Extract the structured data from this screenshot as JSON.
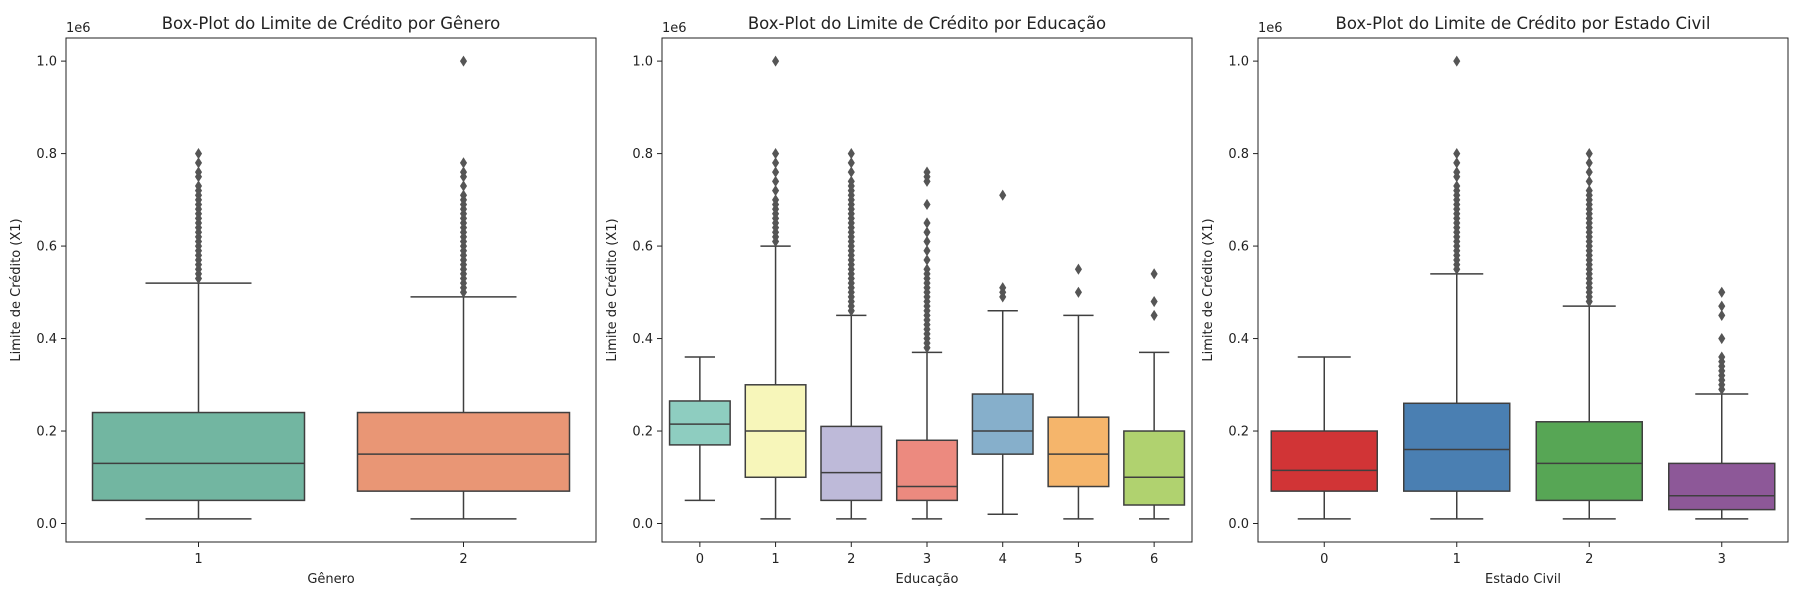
{
  "chart_data": [
    {
      "type": "box",
      "title": "Box-Plot do Limite de Crédito por Gênero",
      "xlabel": "Gênero",
      "ylabel": "Limite de Crédito (X1)",
      "offset_text": "1e6",
      "ylim": [
        -40000,
        1050000
      ],
      "yticks": [
        0.0,
        0.2,
        0.4,
        0.6,
        0.8,
        1.0
      ],
      "ytick_labels": [
        "0.0",
        "0.2",
        "0.4",
        "0.6",
        "0.8",
        "1.0"
      ],
      "ytick_scale": 1000000,
      "categories": [
        "1",
        "2"
      ],
      "boxes": [
        {
          "category": "1",
          "color": "#72b6a1",
          "min": 10000,
          "q1": 50000,
          "median": 130000,
          "q3": 240000,
          "max": 520000,
          "outliers": [
            530000,
            540000,
            550000,
            560000,
            570000,
            580000,
            590000,
            600000,
            610000,
            620000,
            630000,
            640000,
            650000,
            660000,
            670000,
            680000,
            690000,
            700000,
            710000,
            720000,
            730000,
            750000,
            760000,
            780000,
            800000
          ]
        },
        {
          "category": "2",
          "color": "#e99675",
          "min": 10000,
          "q1": 70000,
          "median": 150000,
          "q3": 240000,
          "max": 490000,
          "outliers": [
            500000,
            510000,
            520000,
            530000,
            540000,
            550000,
            560000,
            570000,
            580000,
            590000,
            600000,
            610000,
            620000,
            630000,
            640000,
            650000,
            660000,
            670000,
            680000,
            690000,
            700000,
            710000,
            730000,
            750000,
            760000,
            780000,
            1000000
          ]
        }
      ]
    },
    {
      "type": "box",
      "title": "Box-Plot do Limite de Crédito por Educação",
      "xlabel": "Educação",
      "ylabel": "Limite de Crédito (X1)",
      "offset_text": "1e6",
      "ylim": [
        -40000,
        1050000
      ],
      "yticks": [
        0.0,
        0.2,
        0.4,
        0.6,
        0.8,
        1.0
      ],
      "ytick_labels": [
        "0.0",
        "0.2",
        "0.4",
        "0.6",
        "0.8",
        "1.0"
      ],
      "ytick_scale": 1000000,
      "categories": [
        "0",
        "1",
        "2",
        "3",
        "4",
        "5",
        "6"
      ],
      "boxes": [
        {
          "category": "0",
          "color": "#8ecdc0",
          "min": 50000,
          "q1": 170000,
          "median": 215000,
          "q3": 265000,
          "max": 360000,
          "outliers": []
        },
        {
          "category": "1",
          "color": "#f7f6ba",
          "min": 10000,
          "q1": 100000,
          "median": 200000,
          "q3": 300000,
          "max": 600000,
          "outliers": [
            610000,
            620000,
            630000,
            640000,
            650000,
            660000,
            670000,
            680000,
            690000,
            700000,
            720000,
            740000,
            760000,
            780000,
            800000,
            1000000
          ]
        },
        {
          "category": "2",
          "color": "#bebad9",
          "min": 10000,
          "q1": 50000,
          "median": 110000,
          "q3": 210000,
          "max": 450000,
          "outliers": [
            460000,
            470000,
            480000,
            490000,
            500000,
            510000,
            520000,
            530000,
            540000,
            550000,
            560000,
            570000,
            580000,
            590000,
            600000,
            610000,
            620000,
            630000,
            640000,
            650000,
            660000,
            670000,
            680000,
            690000,
            700000,
            710000,
            720000,
            730000,
            740000,
            760000,
            780000,
            800000
          ]
        },
        {
          "category": "3",
          "color": "#ec8a7f",
          "min": 10000,
          "q1": 50000,
          "median": 80000,
          "q3": 180000,
          "max": 370000,
          "outliers": [
            380000,
            390000,
            400000,
            410000,
            420000,
            430000,
            440000,
            450000,
            460000,
            470000,
            480000,
            490000,
            500000,
            510000,
            520000,
            530000,
            540000,
            550000,
            570000,
            590000,
            610000,
            630000,
            650000,
            690000,
            740000,
            750000,
            760000
          ]
        },
        {
          "category": "4",
          "color": "#86afcb",
          "min": 20000,
          "q1": 150000,
          "median": 200000,
          "q3": 280000,
          "max": 460000,
          "outliers": [
            490000,
            500000,
            510000,
            710000
          ]
        },
        {
          "category": "5",
          "color": "#f5b56b",
          "min": 10000,
          "q1": 80000,
          "median": 150000,
          "q3": 230000,
          "max": 450000,
          "outliers": [
            500000,
            550000
          ]
        },
        {
          "category": "6",
          "color": "#b0d26f",
          "min": 10000,
          "q1": 40000,
          "median": 100000,
          "q3": 200000,
          "max": 370000,
          "outliers": [
            450000,
            480000,
            540000
          ]
        }
      ]
    },
    {
      "type": "box",
      "title": "Box-Plot do Limite de Crédito por Estado Civil",
      "xlabel": "Estado Civil",
      "ylabel": "Limite de Crédito (X1)",
      "offset_text": "1e6",
      "ylim": [
        -40000,
        1050000
      ],
      "yticks": [
        0.0,
        0.2,
        0.4,
        0.6,
        0.8,
        1.0
      ],
      "ytick_labels": [
        "0.0",
        "0.2",
        "0.4",
        "0.6",
        "0.8",
        "1.0"
      ],
      "ytick_scale": 1000000,
      "categories": [
        "0",
        "1",
        "2",
        "3"
      ],
      "boxes": [
        {
          "category": "0",
          "color": "#d13436",
          "min": 10000,
          "q1": 70000,
          "median": 115000,
          "q3": 200000,
          "max": 360000,
          "outliers": []
        },
        {
          "category": "1",
          "color": "#4a7fb2",
          "min": 10000,
          "q1": 70000,
          "median": 160000,
          "q3": 260000,
          "max": 540000,
          "outliers": [
            550000,
            560000,
            570000,
            580000,
            590000,
            600000,
            610000,
            620000,
            630000,
            640000,
            650000,
            660000,
            670000,
            680000,
            690000,
            700000,
            710000,
            720000,
            730000,
            750000,
            760000,
            780000,
            800000,
            1000000
          ]
        },
        {
          "category": "2",
          "color": "#57a655",
          "min": 10000,
          "q1": 50000,
          "median": 130000,
          "q3": 220000,
          "max": 470000,
          "outliers": [
            480000,
            490000,
            500000,
            510000,
            520000,
            530000,
            540000,
            550000,
            560000,
            570000,
            580000,
            590000,
            600000,
            610000,
            620000,
            630000,
            640000,
            650000,
            660000,
            670000,
            680000,
            690000,
            700000,
            710000,
            720000,
            740000,
            760000,
            780000,
            800000
          ]
        },
        {
          "category": "3",
          "color": "#8d5898",
          "min": 10000,
          "q1": 30000,
          "median": 60000,
          "q3": 130000,
          "max": 280000,
          "outliers": [
            290000,
            300000,
            310000,
            320000,
            330000,
            340000,
            350000,
            360000,
            400000,
            450000,
            470000,
            500000
          ]
        }
      ]
    }
  ]
}
